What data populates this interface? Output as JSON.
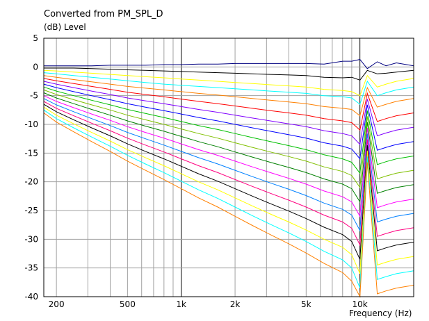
{
  "chart_data": {
    "type": "line",
    "title": "Converted from PM_SPL_D",
    "ylabel": "(dB)  Level",
    "xlabel": "Frequency  (Hz)",
    "xscale": "log",
    "xlim": [
      170,
      20000
    ],
    "ylim": [
      -40,
      5
    ],
    "yticks": [
      5,
      0,
      -5,
      -10,
      -15,
      -20,
      -25,
      -30,
      -35,
      -40
    ],
    "xticks": [
      {
        "v": 200,
        "label": "200"
      },
      {
        "v": 500,
        "label": "500"
      },
      {
        "v": 1000,
        "label": "1k"
      },
      {
        "v": 2000,
        "label": "2k"
      },
      {
        "v": 5000,
        "label": "5k"
      },
      {
        "v": 10000,
        "label": "10k"
      }
    ],
    "grid": true,
    "x": [
      170,
      200,
      250,
      315,
      400,
      500,
      630,
      800,
      1000,
      1250,
      1600,
      2000,
      2500,
      3150,
      4000,
      5000,
      6300,
      8000,
      9000,
      10000,
      11000,
      12500,
      14000,
      16000,
      20000
    ],
    "series": [
      {
        "color": "#000080",
        "values": [
          0.2,
          0.2,
          0.2,
          0.2,
          0.3,
          0.3,
          0.3,
          0.4,
          0.4,
          0.5,
          0.5,
          0.6,
          0.6,
          0.6,
          0.6,
          0.6,
          0.5,
          1.0,
          1.0,
          1.3,
          -0.3,
          0.9,
          0.2,
          0.7,
          0.2
        ]
      },
      {
        "color": "#000000",
        "values": [
          -0.2,
          -0.2,
          -0.2,
          -0.3,
          -0.4,
          -0.5,
          -0.6,
          -0.7,
          -0.8,
          -0.9,
          -1.0,
          -1.1,
          -1.2,
          -1.3,
          -1.4,
          -1.5,
          -1.8,
          -1.9,
          -1.8,
          -2.3,
          -0.6,
          -1.2,
          -1.1,
          -0.9,
          -0.6
        ]
      },
      {
        "color": "#ffff00",
        "values": [
          -0.6,
          -0.7,
          -0.9,
          -1.1,
          -1.3,
          -1.5,
          -1.7,
          -1.9,
          -2.1,
          -2.3,
          -2.5,
          -2.7,
          -2.9,
          -3.1,
          -3.3,
          -3.5,
          -3.9,
          -4.1,
          -4.3,
          -5.0,
          -1.5,
          -3.5,
          -3.0,
          -2.5,
          -2.0
        ]
      },
      {
        "color": "#00ffff",
        "values": [
          -1.0,
          -1.2,
          -1.5,
          -1.8,
          -2.1,
          -2.4,
          -2.7,
          -3.0,
          -3.2,
          -3.4,
          -3.6,
          -3.8,
          -4.0,
          -4.2,
          -4.4,
          -4.6,
          -5.0,
          -5.2,
          -5.4,
          -6.5,
          -2.5,
          -5.0,
          -4.5,
          -4.0,
          -3.5
        ]
      },
      {
        "color": "#ff8000",
        "values": [
          -1.5,
          -1.8,
          -2.2,
          -2.6,
          -3.0,
          -3.4,
          -3.7,
          -4.0,
          -4.3,
          -4.6,
          -4.9,
          -5.2,
          -5.5,
          -5.8,
          -6.1,
          -6.4,
          -6.9,
          -7.2,
          -7.4,
          -8.5,
          -3.6,
          -7.0,
          -6.5,
          -6.0,
          -5.5
        ]
      },
      {
        "color": "#ff0000",
        "values": [
          -2.0,
          -2.4,
          -2.9,
          -3.4,
          -3.9,
          -4.4,
          -4.8,
          -5.2,
          -5.6,
          -6.0,
          -6.4,
          -6.8,
          -7.2,
          -7.6,
          -8.0,
          -8.4,
          -9.0,
          -9.4,
          -9.7,
          -11.0,
          -4.6,
          -9.5,
          -9.0,
          -8.5,
          -8.0
        ]
      },
      {
        "color": "#8000ff",
        "values": [
          -2.5,
          -3.0,
          -3.6,
          -4.2,
          -4.8,
          -5.4,
          -5.9,
          -6.4,
          -6.9,
          -7.4,
          -7.9,
          -8.4,
          -8.9,
          -9.4,
          -9.9,
          -10.4,
          -11.1,
          -11.6,
          -12.0,
          -13.5,
          -5.6,
          -12.0,
          -11.5,
          -11.0,
          -10.5
        ]
      },
      {
        "color": "#0000ff",
        "values": [
          -3.0,
          -3.6,
          -4.3,
          -5.0,
          -5.7,
          -6.4,
          -7.0,
          -7.6,
          -8.2,
          -8.8,
          -9.4,
          -10.0,
          -10.6,
          -11.2,
          -11.8,
          -12.4,
          -13.2,
          -13.8,
          -14.3,
          -16.0,
          -6.6,
          -14.5,
          -14.0,
          -13.5,
          -13.0
        ]
      },
      {
        "color": "#00c000",
        "values": [
          -3.5,
          -4.2,
          -5.0,
          -5.8,
          -6.6,
          -7.4,
          -8.1,
          -8.8,
          -9.5,
          -10.2,
          -10.9,
          -11.6,
          -12.3,
          -13.0,
          -13.7,
          -14.4,
          -15.3,
          -16.0,
          -16.6,
          -18.5,
          -7.6,
          -17.0,
          -16.5,
          -16.0,
          -15.5
        ]
      },
      {
        "color": "#80c000",
        "values": [
          -4.0,
          -4.8,
          -5.7,
          -6.6,
          -7.5,
          -8.4,
          -9.2,
          -10.0,
          -10.8,
          -11.6,
          -12.4,
          -13.2,
          -14.0,
          -14.8,
          -15.6,
          -16.4,
          -17.4,
          -18.2,
          -18.9,
          -21.0,
          -8.6,
          -19.5,
          -19.0,
          -18.5,
          -18.0
        ]
      },
      {
        "color": "#008000",
        "values": [
          -4.5,
          -5.4,
          -6.4,
          -7.4,
          -8.4,
          -9.4,
          -10.3,
          -11.2,
          -12.1,
          -13.0,
          -13.9,
          -14.8,
          -15.7,
          -16.6,
          -17.5,
          -18.4,
          -19.5,
          -20.4,
          -21.2,
          -23.5,
          -9.6,
          -22.0,
          -21.5,
          -21.0,
          -20.5
        ]
      },
      {
        "color": "#ff00ff",
        "values": [
          -5.0,
          -6.0,
          -7.1,
          -8.2,
          -9.3,
          -10.4,
          -11.4,
          -12.4,
          -13.4,
          -14.4,
          -15.4,
          -16.4,
          -17.4,
          -18.4,
          -19.4,
          -20.4,
          -21.6,
          -22.6,
          -23.5,
          -26.0,
          -10.6,
          -24.5,
          -24.0,
          -23.5,
          -23.0
        ]
      },
      {
        "color": "#0080ff",
        "values": [
          -5.5,
          -6.6,
          -7.8,
          -9.0,
          -10.2,
          -11.4,
          -12.5,
          -13.6,
          -14.7,
          -15.8,
          -16.9,
          -18.0,
          -19.1,
          -20.2,
          -21.3,
          -22.4,
          -23.7,
          -24.8,
          -25.8,
          -28.5,
          -11.6,
          -27.0,
          -26.5,
          -26.0,
          -25.5
        ]
      },
      {
        "color": "#ff0080",
        "values": [
          -6.0,
          -7.2,
          -8.5,
          -9.8,
          -11.1,
          -12.4,
          -13.6,
          -14.8,
          -16.0,
          -17.2,
          -18.4,
          -19.6,
          -20.8,
          -22.0,
          -23.2,
          -24.4,
          -25.8,
          -27.0,
          -28.1,
          -31.0,
          -12.6,
          -29.5,
          -29.0,
          -28.5,
          -28.0
        ]
      },
      {
        "color": "#000000",
        "values": [
          -6.5,
          -7.8,
          -9.2,
          -10.6,
          -12.0,
          -13.4,
          -14.7,
          -16.0,
          -17.3,
          -18.6,
          -19.9,
          -21.2,
          -22.5,
          -23.8,
          -25.1,
          -26.4,
          -27.9,
          -29.2,
          -30.4,
          -33.5,
          -13.6,
          -32.0,
          -31.5,
          -31.0,
          -30.5
        ]
      },
      {
        "color": "#ffff00",
        "values": [
          -7.0,
          -8.4,
          -9.9,
          -11.4,
          -12.9,
          -14.4,
          -15.8,
          -17.2,
          -18.6,
          -20.0,
          -21.4,
          -22.8,
          -24.2,
          -25.6,
          -27.0,
          -28.4,
          -30.0,
          -31.4,
          -32.7,
          -36.0,
          -14.6,
          -34.5,
          -34.0,
          -33.5,
          -33.0
        ]
      },
      {
        "color": "#00ffff",
        "values": [
          -7.5,
          -9.0,
          -10.6,
          -12.2,
          -13.8,
          -15.4,
          -16.9,
          -18.4,
          -19.9,
          -21.4,
          -22.9,
          -24.4,
          -25.9,
          -27.4,
          -28.9,
          -30.4,
          -32.1,
          -33.6,
          -35.0,
          -38.5,
          -15.6,
          -37.0,
          -36.5,
          -36.0,
          -35.5
        ]
      },
      {
        "color": "#ff8000",
        "values": [
          -8.0,
          -9.6,
          -11.3,
          -13.0,
          -14.7,
          -16.4,
          -18.0,
          -19.6,
          -21.2,
          -22.8,
          -24.4,
          -26.0,
          -27.6,
          -29.2,
          -30.8,
          -32.4,
          -34.2,
          -35.8,
          -37.3,
          -41.0,
          -16.6,
          -39.5,
          -39.0,
          -38.5,
          -38.0
        ]
      }
    ]
  }
}
